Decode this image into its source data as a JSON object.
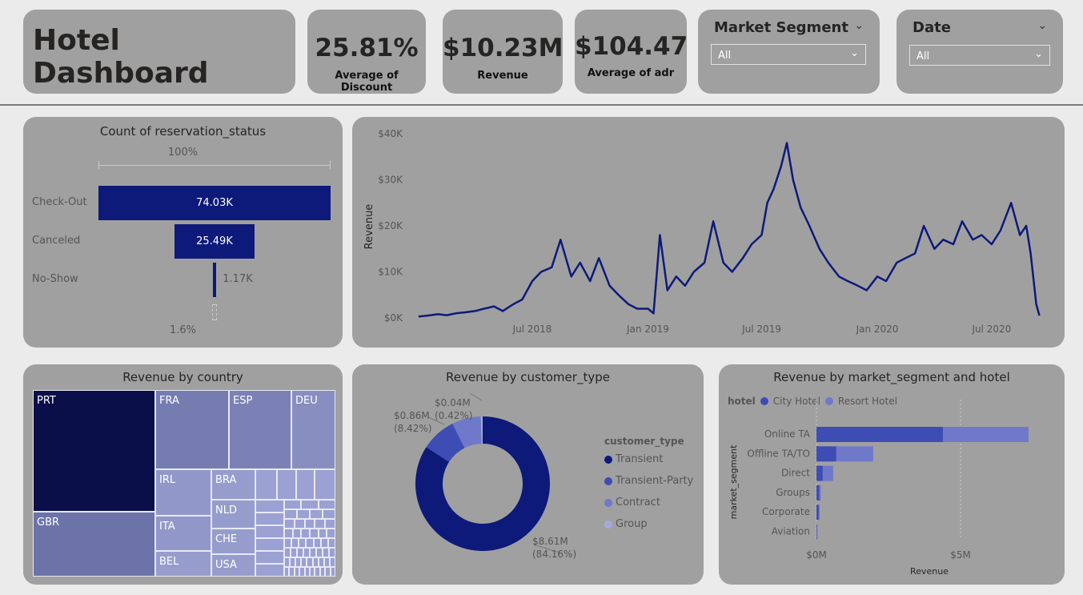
{
  "header": {
    "title": "Hotel Dashboard"
  },
  "kpis": [
    {
      "value": "25.81%",
      "label": "Average of Discount"
    },
    {
      "value": "$10.23M",
      "label": "Revenue"
    },
    {
      "value": "$104.47",
      "label": "Average of adr"
    }
  ],
  "slicers": [
    {
      "title": "Market Segment",
      "selected": "All"
    },
    {
      "title": "Date",
      "selected": "All"
    }
  ],
  "funnel": {
    "title": "Count of reservation_status",
    "top_percent": "100%",
    "bottom_percent": "1.6%",
    "color": "#0d1a7a",
    "items": [
      {
        "label": "Check-Out",
        "value": 74030,
        "display": "74.03K"
      },
      {
        "label": "Canceled",
        "value": 25490,
        "display": "25.49K"
      },
      {
        "label": "No-Show",
        "value": 1170,
        "display": "1.17K"
      }
    ]
  },
  "chart_data": [
    {
      "type": "line",
      "title": "",
      "ylabel": "Revenue",
      "ylim": [
        0,
        40000
      ],
      "yticks": [
        "$0K",
        "$10K",
        "$20K",
        "$30K",
        "$40K"
      ],
      "xticks": [
        "Jul 2018",
        "Jan 2019",
        "Jul 2019",
        "Jan 2020",
        "Jul 2020"
      ],
      "color": "#0d1a7a",
      "x": [
        "2018-01-01",
        "2018-01-15",
        "2018-02-01",
        "2018-02-15",
        "2018-03-01",
        "2018-03-15",
        "2018-04-01",
        "2018-04-15",
        "2018-05-01",
        "2018-05-15",
        "2018-06-01",
        "2018-06-15",
        "2018-07-01",
        "2018-07-15",
        "2018-08-01",
        "2018-08-15",
        "2018-09-01",
        "2018-09-15",
        "2018-10-01",
        "2018-10-15",
        "2018-11-01",
        "2018-11-15",
        "2018-12-01",
        "2018-12-15",
        "2019-01-01",
        "2019-01-10",
        "2019-01-20",
        "2019-02-01",
        "2019-02-15",
        "2019-03-01",
        "2019-03-15",
        "2019-04-01",
        "2019-04-15",
        "2019-05-01",
        "2019-05-15",
        "2019-06-01",
        "2019-06-15",
        "2019-07-01",
        "2019-07-10",
        "2019-07-20",
        "2019-08-01",
        "2019-08-10",
        "2019-08-20",
        "2019-09-01",
        "2019-09-15",
        "2019-10-01",
        "2019-10-15",
        "2019-11-01",
        "2019-11-15",
        "2019-12-01",
        "2019-12-15",
        "2020-01-01",
        "2020-01-15",
        "2020-02-01",
        "2020-02-15",
        "2020-03-01",
        "2020-03-15",
        "2020-04-01",
        "2020-04-15",
        "2020-05-01",
        "2020-05-15",
        "2020-06-01",
        "2020-06-15",
        "2020-07-01",
        "2020-07-15",
        "2020-08-01",
        "2020-08-15",
        "2020-08-25",
        "2020-09-01",
        "2020-09-10",
        "2020-09-15"
      ],
      "y": [
        300,
        500,
        800,
        600,
        1000,
        1200,
        1500,
        2000,
        2500,
        1500,
        3000,
        4000,
        8000,
        10000,
        11000,
        17000,
        9000,
        12000,
        8000,
        13000,
        7000,
        5000,
        3000,
        2000,
        2000,
        1000,
        18000,
        6000,
        9000,
        7000,
        10000,
        12000,
        21000,
        12000,
        10000,
        13000,
        16000,
        18000,
        25000,
        28000,
        33000,
        38000,
        30000,
        24000,
        20000,
        15000,
        12000,
        9000,
        8000,
        7000,
        6000,
        9000,
        8000,
        12000,
        13000,
        14000,
        20000,
        15000,
        17000,
        16000,
        21000,
        17000,
        18000,
        16000,
        19000,
        25000,
        18000,
        20000,
        14000,
        3000,
        500
      ]
    },
    {
      "type": "pie",
      "title": "Revenue by customer_type",
      "legend_title": "customer_type",
      "categories": [
        "Transient",
        "Transient-Party",
        "Contract",
        "Group"
      ],
      "percent": [
        84.16,
        8.42,
        7.0,
        0.42
      ],
      "labels": [
        [
          "$8.61M",
          "(84.16%)"
        ],
        [
          "$0.86M",
          "(8.42%)"
        ],
        null,
        [
          "$0.04M",
          "(0.42%)"
        ]
      ],
      "colors": [
        "#0d1a7a",
        "#3d4db4",
        "#7079c9",
        "#a3a9e0"
      ]
    },
    {
      "type": "bar",
      "title": "Revenue by market_segment and hotel",
      "legend_title": "hotel",
      "ylabel": "market_segment",
      "xlabel": "Revenue",
      "xticks": [
        "$0M",
        "$5M"
      ],
      "xlim": [
        0,
        7.5
      ],
      "categories": [
        "Online TA",
        "Offline TA/TO",
        "Direct",
        "Groups",
        "Corporate",
        "Aviation"
      ],
      "series": [
        {
          "name": "City Hotel",
          "color": "#3d4db4",
          "values": [
            4.39,
            0.69,
            0.22,
            0.1,
            0.08,
            0.02
          ]
        },
        {
          "name": "Resort Hotel",
          "color": "#7079c9",
          "values": [
            2.97,
            1.28,
            0.36,
            0.05,
            0.03,
            0.0
          ]
        }
      ]
    }
  ],
  "treemap": {
    "title": "Revenue by country",
    "items": [
      {
        "label": "PRT",
        "color": "#0a0f4a"
      },
      {
        "label": "GBR",
        "color": "#6c73a8"
      },
      {
        "label": "FRA",
        "color": "#757cb0"
      },
      {
        "label": "ESP",
        "color": "#7b81b5"
      },
      {
        "label": "DEU",
        "color": "#888ec0"
      },
      {
        "label": "IRL",
        "color": "#9198c9"
      },
      {
        "label": "ITA",
        "color": "#9198c9"
      },
      {
        "label": "BEL",
        "color": "#969dcc"
      },
      {
        "label": "BRA",
        "color": "#969dcc"
      },
      {
        "label": "NLD",
        "color": "#969dcc"
      },
      {
        "label": "CHE",
        "color": "#969dcc"
      },
      {
        "label": "USA",
        "color": "#969dcc"
      }
    ]
  }
}
